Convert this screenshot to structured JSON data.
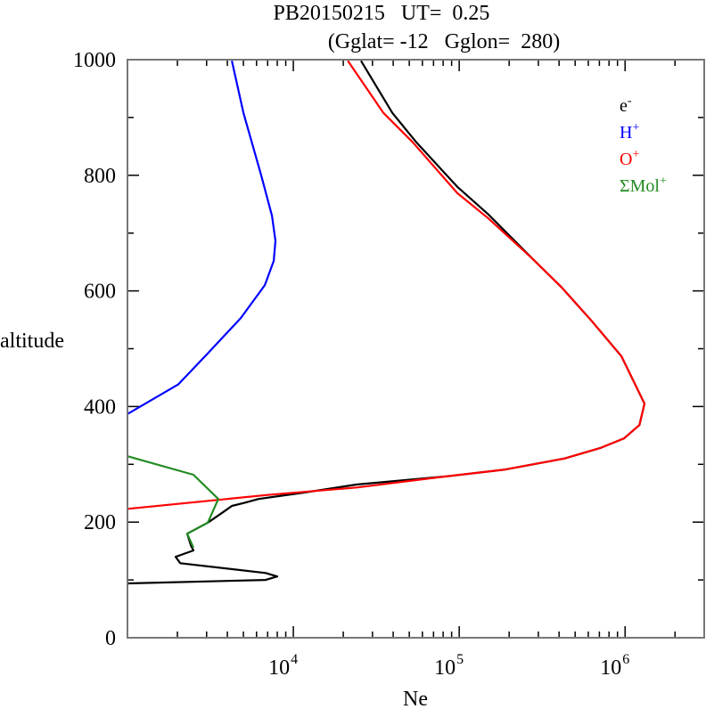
{
  "chart_data": {
    "type": "line",
    "title_line1": "PB20150215   UT=  0.25",
    "title_line2": "(Gglat= -12   Gglon=  280)",
    "xlabel": "Ne",
    "ylabel": "altitude",
    "xscale": "log",
    "xlim": [
      1000,
      3000000
    ],
    "ylim": [
      0,
      1000
    ],
    "yticks": [
      0,
      200,
      400,
      600,
      800,
      1000
    ],
    "ytick_labels": [
      "0",
      "200",
      "400",
      "600",
      "800",
      "1000"
    ],
    "yminor_step": 100,
    "xticks": [
      {
        "value": 10000,
        "base": "10",
        "exp": "4"
      },
      {
        "value": 100000,
        "base": "10",
        "exp": "5"
      },
      {
        "value": 1000000,
        "base": "10",
        "exp": "6"
      }
    ],
    "legend_position": "top-right",
    "series": [
      {
        "name": "e-",
        "label_base": "e",
        "label_sup": "-",
        "color": "#000000",
        "points": [
          [
            1000,
            94
          ],
          [
            6810,
            100
          ],
          [
            8000,
            106
          ],
          [
            6810,
            112
          ],
          [
            2080,
            129
          ],
          [
            1950,
            140
          ],
          [
            2500,
            151
          ],
          [
            2410,
            160
          ],
          [
            2290,
            180
          ],
          [
            3050,
            199
          ],
          [
            3760,
            217
          ],
          [
            4260,
            228
          ],
          [
            5000,
            233
          ],
          [
            6170,
            240
          ],
          [
            11500,
            251
          ],
          [
            24000,
            265
          ],
          [
            83000,
            279
          ],
          [
            190000,
            291
          ],
          [
            430000,
            310
          ],
          [
            706000,
            328
          ],
          [
            988000,
            345
          ],
          [
            1220000,
            368
          ],
          [
            1310000,
            405
          ],
          [
            950000,
            487
          ],
          [
            625000,
            549
          ],
          [
            415000,
            606
          ],
          [
            276000,
            656
          ],
          [
            149000,
            733
          ],
          [
            97500,
            780
          ],
          [
            55200,
            857
          ],
          [
            39500,
            908
          ],
          [
            25600,
            998
          ]
        ]
      },
      {
        "name": "H+",
        "label_base": "H",
        "label_sup": "+",
        "color": "#0000ff",
        "points": [
          [
            1000,
            387
          ],
          [
            2020,
            438
          ],
          [
            3050,
            492
          ],
          [
            4820,
            553
          ],
          [
            6730,
            610
          ],
          [
            7620,
            652
          ],
          [
            7800,
            687
          ],
          [
            7430,
            730
          ],
          [
            6400,
            800
          ],
          [
            5000,
            908
          ],
          [
            4260,
            998
          ]
        ]
      },
      {
        "name": "O+",
        "label_base": "O",
        "label_sup": "+",
        "color": "#ff0000",
        "points": [
          [
            1000,
            223
          ],
          [
            6980,
            247
          ],
          [
            24100,
            260
          ],
          [
            83000,
            279
          ],
          [
            190000,
            291
          ],
          [
            430000,
            310
          ],
          [
            706000,
            328
          ],
          [
            988000,
            345
          ],
          [
            1220000,
            368
          ],
          [
            1310000,
            405
          ],
          [
            950000,
            487
          ],
          [
            625000,
            549
          ],
          [
            415000,
            606
          ],
          [
            276000,
            656
          ],
          [
            149000,
            726
          ],
          [
            97500,
            769
          ],
          [
            52500,
            857
          ],
          [
            34900,
            908
          ],
          [
            21300,
            998
          ]
        ]
      },
      {
        "name": "ΣMol+",
        "label_base": "ΣMol",
        "label_sup": "+",
        "color": "#228b22",
        "points": [
          [
            1000,
            314
          ],
          [
            2500,
            282
          ],
          [
            3530,
            240
          ],
          [
            3050,
            199
          ],
          [
            2290,
            180
          ],
          [
            2500,
            156
          ]
        ]
      }
    ]
  }
}
